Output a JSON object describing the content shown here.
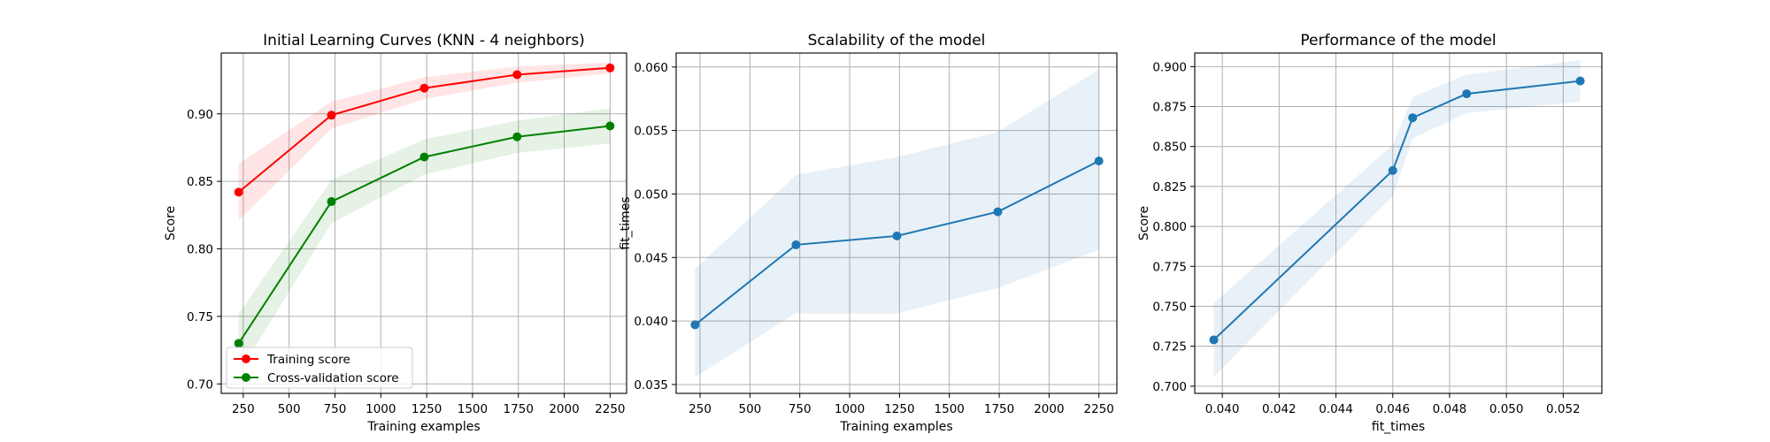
{
  "chart_data": [
    {
      "type": "line",
      "title": "Initial Learning Curves (KNN - 4 neighbors)",
      "xlabel": "Training examples",
      "ylabel": "Score",
      "xlim": [
        130,
        2340
      ],
      "ylim": [
        0.693,
        0.945
      ],
      "xticks": [
        250,
        500,
        750,
        1000,
        1250,
        1500,
        1750,
        2000,
        2250
      ],
      "xtick_labels": [
        "250",
        "500",
        "750",
        "1000",
        "1250",
        "1500",
        "1750",
        "2000",
        "2250"
      ],
      "yticks": [
        0.7,
        0.75,
        0.8,
        0.85,
        0.9
      ],
      "ytick_labels": [
        "0.70",
        "0.75",
        "0.80",
        "0.85",
        "0.90"
      ],
      "grid": true,
      "legend_position": "lower-left",
      "x": [
        225,
        731,
        1237,
        1743,
        2250
      ],
      "series": [
        {
          "name": "Training score",
          "color": "#ff0000",
          "values": [
            0.842,
            0.899,
            0.919,
            0.929,
            0.934
          ],
          "band_low": [
            0.821,
            0.889,
            0.911,
            0.923,
            0.93
          ],
          "band_high": [
            0.863,
            0.909,
            0.927,
            0.935,
            0.938
          ]
        },
        {
          "name": "Cross-validation score",
          "color": "#008000",
          "values": [
            0.73,
            0.835,
            0.868,
            0.883,
            0.891
          ],
          "band_low": [
            0.708,
            0.819,
            0.855,
            0.871,
            0.878
          ],
          "band_high": [
            0.752,
            0.851,
            0.881,
            0.895,
            0.904
          ]
        }
      ]
    },
    {
      "type": "line",
      "title": "Scalability of the model",
      "xlabel": "Training examples",
      "ylabel": "fit_times",
      "xlim": [
        130,
        2340
      ],
      "ylim": [
        0.0343,
        0.0611
      ],
      "xticks": [
        250,
        500,
        750,
        1000,
        1250,
        1500,
        1750,
        2000,
        2250
      ],
      "xtick_labels": [
        "250",
        "500",
        "750",
        "1000",
        "1250",
        "1500",
        "1750",
        "2000",
        "2250"
      ],
      "yticks": [
        0.035,
        0.04,
        0.045,
        0.05,
        0.055,
        0.06
      ],
      "ytick_labels": [
        "0.035",
        "0.040",
        "0.045",
        "0.050",
        "0.055",
        "0.060"
      ],
      "grid": true,
      "x": [
        225,
        731,
        1237,
        1743,
        2250
      ],
      "series": [
        {
          "color": "#1f77b4",
          "values": [
            0.0397,
            0.046,
            0.0467,
            0.0486,
            0.0526
          ],
          "band_low": [
            0.0356,
            0.0406,
            0.0406,
            0.0426,
            0.0456
          ],
          "band_high": [
            0.0441,
            0.0515,
            0.0529,
            0.0549,
            0.0598
          ]
        }
      ]
    },
    {
      "type": "line",
      "title": "Performance of the model",
      "xlabel": "fit_times",
      "ylabel": "Score",
      "xlim": [
        0.03903,
        0.05336
      ],
      "ylim": [
        0.6955,
        0.9085
      ],
      "xticks": [
        0.04,
        0.042,
        0.044,
        0.046,
        0.048,
        0.05,
        0.052
      ],
      "xtick_labels": [
        "0.040",
        "0.042",
        "0.044",
        "0.046",
        "0.048",
        "0.050",
        "0.052"
      ],
      "yticks": [
        0.7,
        0.725,
        0.75,
        0.775,
        0.8,
        0.825,
        0.85,
        0.875,
        0.9
      ],
      "ytick_labels": [
        "0.700",
        "0.725",
        "0.750",
        "0.775",
        "0.800",
        "0.825",
        "0.850",
        "0.875",
        "0.900"
      ],
      "grid": true,
      "x": [
        0.0397,
        0.046,
        0.0467,
        0.0486,
        0.0526
      ],
      "series": [
        {
          "color": "#1f77b4",
          "values": [
            0.729,
            0.835,
            0.868,
            0.883,
            0.891
          ],
          "band_low": [
            0.706,
            0.819,
            0.855,
            0.871,
            0.878
          ],
          "band_high": [
            0.752,
            0.851,
            0.881,
            0.895,
            0.904
          ]
        }
      ]
    }
  ]
}
